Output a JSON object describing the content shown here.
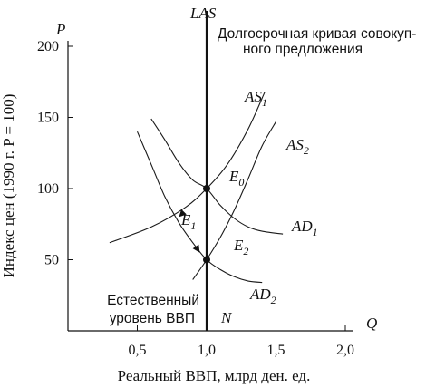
{
  "chart_data": {
    "type": "line",
    "title": "",
    "xlabel": "Реальный ВВП, млрд ден. ед.",
    "ylabel": "Индекс цен (1990 г. P = 100)",
    "x_axis_symbol": "Q",
    "y_axis_symbol": "P",
    "xlim": [
      0,
      2.0
    ],
    "ylim": [
      0,
      200
    ],
    "x_ticks": [
      "0,5",
      "1,0",
      "1,5",
      "2,0"
    ],
    "x_tick_values": [
      0.5,
      1.0,
      1.5,
      2.0
    ],
    "y_ticks": [
      "200",
      "150",
      "100",
      "50"
    ],
    "y_tick_values": [
      200,
      150,
      100,
      50
    ],
    "series": [
      {
        "name": "AS1",
        "label_main": "AS",
        "label_sub": "1",
        "points": [
          [
            0.3,
            62
          ],
          [
            0.6,
            73
          ],
          [
            0.85,
            87
          ],
          [
            1.0,
            100
          ],
          [
            1.15,
            117
          ],
          [
            1.3,
            142
          ],
          [
            1.42,
            168
          ]
        ]
      },
      {
        "name": "AS2",
        "label_main": "AS",
        "label_sub": "2",
        "points": [
          [
            0.9,
            36
          ],
          [
            1.0,
            50
          ],
          [
            1.1,
            66
          ],
          [
            1.2,
            85
          ],
          [
            1.3,
            107
          ],
          [
            1.4,
            130
          ],
          [
            1.5,
            147
          ]
        ]
      },
      {
        "name": "AD1",
        "label_main": "AD",
        "label_sub": "1",
        "points": [
          [
            0.6,
            149
          ],
          [
            0.7,
            134
          ],
          [
            0.8,
            118
          ],
          [
            0.9,
            106
          ],
          [
            1.0,
            100
          ],
          [
            1.1,
            88
          ],
          [
            1.2,
            79
          ],
          [
            1.3,
            73
          ],
          [
            1.4,
            70
          ],
          [
            1.55,
            68
          ]
        ]
      },
      {
        "name": "AD2",
        "label_main": "AD",
        "label_sub": "2",
        "points": [
          [
            0.5,
            140
          ],
          [
            0.6,
            117
          ],
          [
            0.7,
            94
          ],
          [
            0.8,
            76
          ],
          [
            0.9,
            62
          ],
          [
            1.0,
            50
          ],
          [
            1.1,
            43
          ],
          [
            1.2,
            38
          ],
          [
            1.3,
            35
          ],
          [
            1.4,
            34
          ]
        ]
      }
    ],
    "vertical_line": {
      "name": "LAS",
      "x": 1.0,
      "y_from": 0,
      "y_to": 225
    },
    "points": [
      {
        "name": "E0",
        "label_main": "E",
        "label_sub": "0",
        "x": 1.0,
        "y": 100
      },
      {
        "name": "E1",
        "label_main": "E",
        "label_sub": "1",
        "x": 0.85,
        "y": 70
      },
      {
        "name": "E2",
        "label_main": "E",
        "label_sub": "2",
        "x": 1.0,
        "y": 50
      }
    ],
    "arrows": [
      {
        "on": "AS1",
        "from": [
          0.9,
          90
        ],
        "to": [
          0.8,
          80
        ]
      },
      {
        "on": "AD2",
        "from": [
          0.85,
          70
        ],
        "to": [
          0.95,
          55
        ]
      }
    ],
    "annotations": {
      "las_label": "LAS",
      "las_note_line1": "Долгосрочная кривая совокуп-",
      "las_note_line2": "ного предложения",
      "natural_line1": "Естественный",
      "natural_line2": "уровень ВВП",
      "n_label": "N"
    },
    "grid": false,
    "legend": "none"
  }
}
